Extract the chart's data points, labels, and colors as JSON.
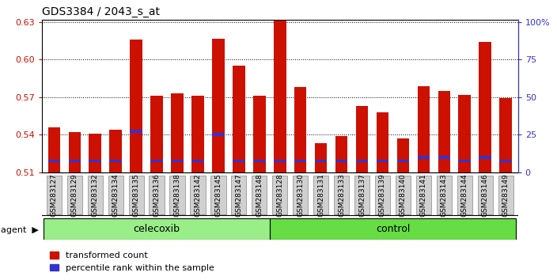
{
  "title": "GDS3384 / 2043_s_at",
  "samples": [
    "GSM283127",
    "GSM283129",
    "GSM283132",
    "GSM283134",
    "GSM283135",
    "GSM283136",
    "GSM283138",
    "GSM283142",
    "GSM283145",
    "GSM283147",
    "GSM283148",
    "GSM283128",
    "GSM283130",
    "GSM283131",
    "GSM283133",
    "GSM283137",
    "GSM283139",
    "GSM283140",
    "GSM283141",
    "GSM283143",
    "GSM283144",
    "GSM283146",
    "GSM283149"
  ],
  "transformed_count": [
    0.546,
    0.542,
    0.541,
    0.544,
    0.616,
    0.571,
    0.573,
    0.571,
    0.617,
    0.595,
    0.571,
    0.632,
    0.578,
    0.533,
    0.539,
    0.563,
    0.558,
    0.537,
    0.579,
    0.575,
    0.572,
    0.614,
    0.569
  ],
  "percentile_rank": [
    0.519,
    0.519,
    0.519,
    0.519,
    0.543,
    0.519,
    0.519,
    0.519,
    0.54,
    0.519,
    0.519,
    0.519,
    0.519,
    0.519,
    0.519,
    0.519,
    0.519,
    0.519,
    0.522,
    0.522,
    0.519,
    0.522,
    0.519
  ],
  "groups": [
    "celecoxib",
    "celecoxib",
    "celecoxib",
    "celecoxib",
    "celecoxib",
    "celecoxib",
    "celecoxib",
    "celecoxib",
    "celecoxib",
    "celecoxib",
    "celecoxib",
    "control",
    "control",
    "control",
    "control",
    "control",
    "control",
    "control",
    "control",
    "control",
    "control",
    "control",
    "control"
  ],
  "ymin": 0.51,
  "ymax": 0.63,
  "bar_color": "#cc1100",
  "blue_color": "#3333cc",
  "celecoxib_color": "#99ee88",
  "control_color": "#66dd44",
  "legend_red": "transformed count",
  "legend_blue": "percentile rank within the sample",
  "background_color": "#ffffff",
  "ticklabel_bg": "#d0d0d0",
  "agent_label": "agent"
}
